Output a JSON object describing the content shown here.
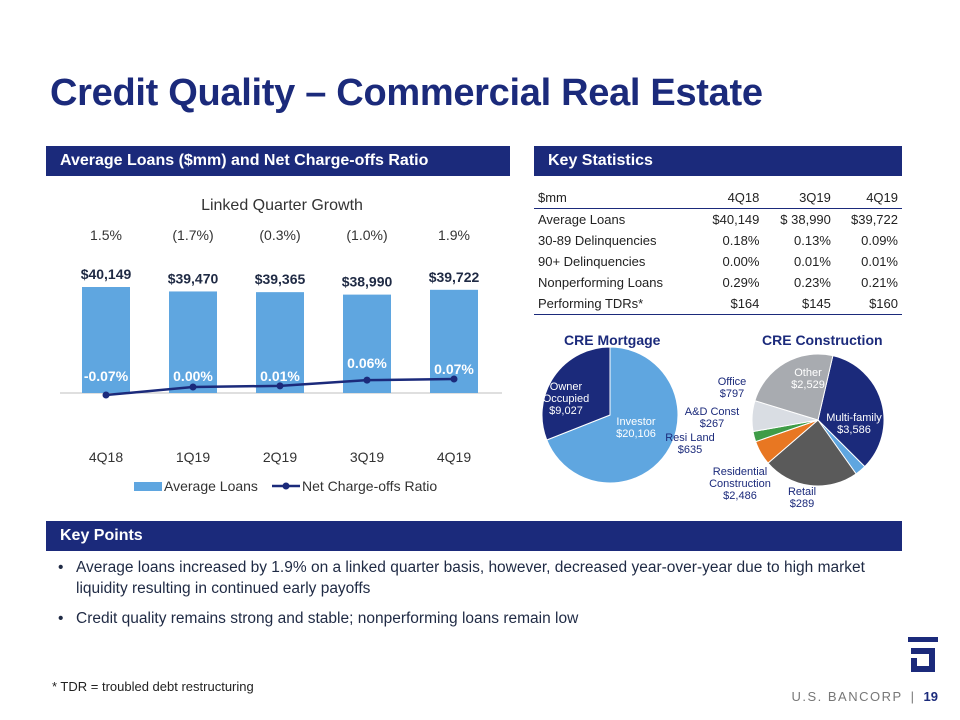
{
  "title": "Credit Quality – Commercial Real Estate",
  "left_header": "Average Loans ($mm) and Net Charge-offs Ratio",
  "right_header": "Key Statistics",
  "key_points_header": "Key Points",
  "growth_title": "Linked Quarter Growth",
  "growth": [
    "1.5%",
    "(1.7%)",
    "(0.3%)",
    "(1.0%)",
    "1.9%"
  ],
  "chart_data": {
    "type": "bar",
    "categories": [
      "4Q18",
      "1Q19",
      "2Q19",
      "3Q19",
      "4Q19"
    ],
    "series": [
      {
        "name": "Average Loans",
        "type": "bar",
        "values": [
          40149,
          39470,
          39365,
          38990,
          39722
        ],
        "labels": [
          "$40,149",
          "$39,470",
          "$39,365",
          "$38,990",
          "$39,722"
        ],
        "color": "#5fa6e0"
      },
      {
        "name": "Net Charge-offs Ratio",
        "type": "line",
        "values": [
          -0.07,
          0.0,
          0.01,
          0.06,
          0.07
        ],
        "labels": [
          "-0.07%",
          "0.00%",
          "0.01%",
          "0.06%",
          "0.07%"
        ],
        "color": "#1b2a7b"
      }
    ],
    "legend_position": "bottom"
  },
  "stats": {
    "columns": [
      "$mm",
      "4Q18",
      "3Q19",
      "4Q19"
    ],
    "rows": [
      [
        "Average Loans",
        "$40,149",
        "$ 38,990",
        "$39,722"
      ],
      [
        "30-89 Delinquencies",
        "0.18%",
        "0.13%",
        "0.09%"
      ],
      [
        "90+ Delinquencies",
        "0.00%",
        "0.01%",
        "0.01%"
      ],
      [
        "Nonperforming Loans",
        "0.29%",
        "0.23%",
        "0.21%"
      ],
      [
        "Performing TDRs*",
        "$164",
        "$145",
        "$160"
      ]
    ]
  },
  "pies": {
    "mortgage": {
      "title": "CRE Mortgage",
      "slices": [
        {
          "label": "Investor",
          "value_label": "$20,106",
          "value": 20106,
          "color": "#5fa6e0"
        },
        {
          "label": "Owner Occupied",
          "value_label": "$9,027",
          "value": 9027,
          "color": "#1b2a7b"
        }
      ]
    },
    "construction": {
      "title": "CRE Construction",
      "slices": [
        {
          "label": "Multi-family",
          "value_label": "$3,586",
          "value": 3586,
          "color": "#1b2a7b"
        },
        {
          "label": "Retail",
          "value_label": "$289",
          "value": 289,
          "color": "#5fa6e0"
        },
        {
          "label": "Residential Construction",
          "value_label": "$2,486",
          "value": 2486,
          "color": "#5a5a5a"
        },
        {
          "label": "Resi Land",
          "value_label": "$635",
          "value": 635,
          "color": "#e87722"
        },
        {
          "label": "A&D Const",
          "value_label": "$267",
          "value": 267,
          "color": "#3f9c47"
        },
        {
          "label": "Office",
          "value_label": "$797",
          "value": 797,
          "color": "#d9dde3"
        },
        {
          "label": "Other",
          "value_label": "$2,529",
          "value": 2529,
          "color": "#a8abb0"
        }
      ]
    }
  },
  "bullets": [
    "Average loans increased by 1.9% on a linked quarter basis, however, decreased year-over-year due to high market liquidity resulting in continued early payoffs",
    "Credit quality remains strong and stable; nonperforming loans remain low"
  ],
  "footnote": "* TDR = troubled debt restructuring",
  "footer": {
    "brand": "U.S. BANCORP",
    "page": "19"
  }
}
